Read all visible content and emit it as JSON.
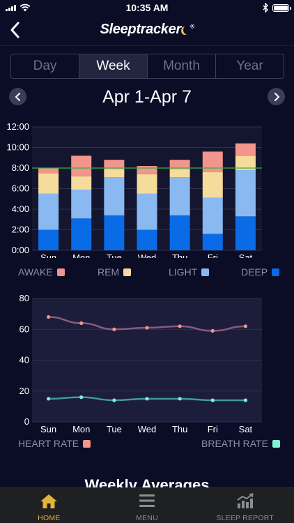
{
  "status_bar": {
    "time": "10:35 AM"
  },
  "header": {
    "logo": "Sleeptracker",
    "logo_mark": "®"
  },
  "tabs": [
    {
      "label": "Day",
      "active": false
    },
    {
      "label": "Week",
      "active": true
    },
    {
      "label": "Month",
      "active": false
    },
    {
      "label": "Year",
      "active": false
    }
  ],
  "date_range": "Apr 1-Apr 7",
  "legend_sleep": [
    {
      "label": "AWAKE",
      "color": "#f2958c"
    },
    {
      "label": "REM",
      "color": "#f6dc9a"
    },
    {
      "label": "LIGHT",
      "color": "#8ab9f1"
    },
    {
      "label": "DEEP",
      "color": "#0a6be6"
    }
  ],
  "legend_rates": [
    {
      "label": "HEART RATE",
      "color": "#f2958c"
    },
    {
      "label": "BREATH RATE",
      "color": "#7df2d6"
    }
  ],
  "weekly_title": "Weekly Averages",
  "tab_bar": [
    {
      "label": "HOME",
      "icon": "home-icon",
      "active": true
    },
    {
      "label": "MENU",
      "icon": "menu-icon",
      "active": false
    },
    {
      "label": "SLEEP REPORT",
      "icon": "sleep-report-icon",
      "active": false
    }
  ],
  "chart_data": [
    {
      "type": "bar",
      "stacked": true,
      "categories": [
        "Sun",
        "Mon",
        "Tue",
        "Wed",
        "Thu",
        "Fri",
        "Sat"
      ],
      "y_ticks": [
        "0:00",
        "2:00",
        "4:00",
        "6:00",
        "8:00",
        "10:00",
        "12:00"
      ],
      "ylim": [
        0,
        12
      ],
      "reference_line": 8,
      "reference_color": "#3fae3f",
      "series": [
        {
          "name": "DEEP",
          "color": "#0a6be6",
          "values": [
            2.0,
            3.1,
            3.4,
            2.0,
            3.4,
            1.6,
            3.3
          ]
        },
        {
          "name": "LIGHT",
          "color": "#8ab9f1",
          "values": [
            3.5,
            2.8,
            3.7,
            3.5,
            3.7,
            3.5,
            4.5
          ]
        },
        {
          "name": "REM",
          "color": "#f6dc9a",
          "values": [
            2.0,
            1.3,
            0.8,
            1.9,
            0.8,
            2.5,
            1.4
          ]
        },
        {
          "name": "AWAKE",
          "color": "#f2958c",
          "values": [
            0.5,
            2.0,
            0.9,
            0.8,
            0.9,
            2.0,
            1.2
          ]
        }
      ]
    },
    {
      "type": "line",
      "categories": [
        "Sun",
        "Mon",
        "Tue",
        "Wed",
        "Thu",
        "Fri",
        "Sat"
      ],
      "y_ticks": [
        "0",
        "20",
        "40",
        "60",
        "80"
      ],
      "ylim": [
        0,
        80
      ],
      "series": [
        {
          "name": "HEART RATE",
          "color": "#f2958c",
          "line_color": "#8a5a7a",
          "values": [
            68,
            64,
            60,
            61,
            62,
            59,
            62
          ]
        },
        {
          "name": "BREATH RATE",
          "color": "#7df2d6",
          "line_color": "#3f9a98",
          "values": [
            15,
            16,
            14,
            15,
            15,
            14,
            14
          ]
        }
      ]
    }
  ]
}
